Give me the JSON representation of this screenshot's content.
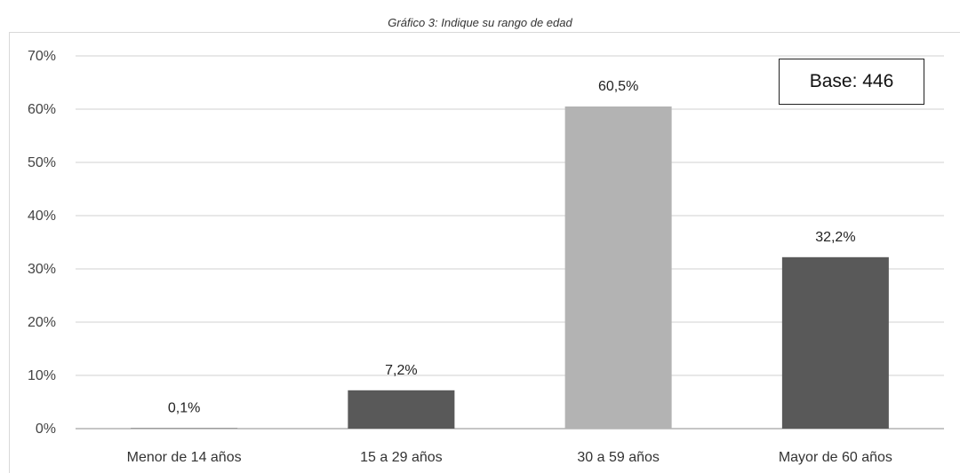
{
  "chart_data": {
    "type": "bar",
    "title": "Gráfico 3: Indique su rango de edad",
    "xlabel": "",
    "ylabel": "",
    "categories": [
      "Menor de 14 años",
      "15 a 29 años",
      "30 a 59 años",
      "Mayor de 60 años"
    ],
    "values": [
      0.1,
      7.2,
      60.5,
      32.2
    ],
    "value_labels": [
      "0,1%",
      "7,2%",
      "60,5%",
      "32,2%"
    ],
    "bar_colors": [
      "#595959",
      "#595959",
      "#b3b3b3",
      "#595959"
    ],
    "ylim": [
      0,
      70
    ],
    "yticks": [
      0,
      10,
      20,
      30,
      40,
      50,
      60,
      70
    ],
    "ytick_labels": [
      "0%",
      "10%",
      "20%",
      "30%",
      "40%",
      "50%",
      "60%",
      "70%"
    ],
    "grid": true,
    "legend": "none"
  },
  "annotation": {
    "base_text": "Base: 446"
  }
}
